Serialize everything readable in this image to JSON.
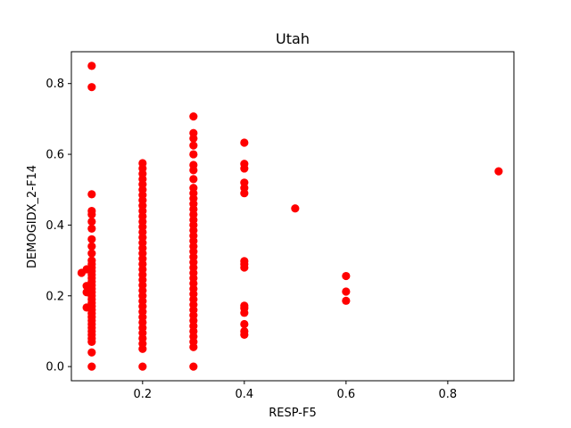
{
  "chart_data": {
    "type": "scatter",
    "title": "Utah",
    "xlabel": "RESP-F5",
    "ylabel": "DEMOGIDX_2-F14",
    "xlim": [
      0.06,
      0.93
    ],
    "ylim": [
      -0.04,
      0.89
    ],
    "xticks": [
      0.2,
      0.4,
      0.6,
      0.8
    ],
    "yticks": [
      0.0,
      0.2,
      0.4,
      0.6,
      0.8
    ],
    "xtick_labels": [
      "0.2",
      "0.4",
      "0.6",
      "0.8"
    ],
    "ytick_labels": [
      "0.0",
      "0.2",
      "0.4",
      "0.6",
      "0.8"
    ],
    "grid": false,
    "marker_color": "#ff0000",
    "series": [
      {
        "name": "Utah",
        "points": [
          [
            0.1,
            0.85
          ],
          [
            0.1,
            0.79
          ],
          [
            0.1,
            0.487
          ],
          [
            0.1,
            0.44
          ],
          [
            0.1,
            0.43
          ],
          [
            0.1,
            0.41
          ],
          [
            0.1,
            0.39
          ],
          [
            0.1,
            0.36
          ],
          [
            0.1,
            0.34
          ],
          [
            0.1,
            0.32
          ],
          [
            0.1,
            0.3
          ],
          [
            0.1,
            0.29
          ],
          [
            0.1,
            0.28
          ],
          [
            0.1,
            0.27
          ],
          [
            0.1,
            0.26
          ],
          [
            0.1,
            0.25
          ],
          [
            0.1,
            0.24
          ],
          [
            0.1,
            0.23
          ],
          [
            0.1,
            0.22
          ],
          [
            0.1,
            0.21
          ],
          [
            0.1,
            0.2
          ],
          [
            0.1,
            0.19
          ],
          [
            0.1,
            0.18
          ],
          [
            0.1,
            0.17
          ],
          [
            0.1,
            0.16
          ],
          [
            0.1,
            0.15
          ],
          [
            0.1,
            0.14
          ],
          [
            0.1,
            0.13
          ],
          [
            0.1,
            0.12
          ],
          [
            0.1,
            0.11
          ],
          [
            0.1,
            0.1
          ],
          [
            0.1,
            0.09
          ],
          [
            0.1,
            0.08
          ],
          [
            0.1,
            0.07
          ],
          [
            0.1,
            0.04
          ],
          [
            0.1,
            0.0
          ],
          [
            0.08,
            0.265
          ],
          [
            0.09,
            0.275
          ],
          [
            0.09,
            0.228
          ],
          [
            0.09,
            0.21
          ],
          [
            0.09,
            0.167
          ],
          [
            0.095,
            0.225
          ],
          [
            0.2,
            0.575
          ],
          [
            0.2,
            0.56
          ],
          [
            0.2,
            0.545
          ],
          [
            0.2,
            0.53
          ],
          [
            0.2,
            0.515
          ],
          [
            0.2,
            0.5
          ],
          [
            0.2,
            0.485
          ],
          [
            0.2,
            0.47
          ],
          [
            0.2,
            0.455
          ],
          [
            0.2,
            0.44
          ],
          [
            0.2,
            0.425
          ],
          [
            0.2,
            0.41
          ],
          [
            0.2,
            0.395
          ],
          [
            0.2,
            0.38
          ],
          [
            0.2,
            0.365
          ],
          [
            0.2,
            0.35
          ],
          [
            0.2,
            0.335
          ],
          [
            0.2,
            0.32
          ],
          [
            0.2,
            0.305
          ],
          [
            0.2,
            0.29
          ],
          [
            0.2,
            0.275
          ],
          [
            0.2,
            0.26
          ],
          [
            0.2,
            0.245
          ],
          [
            0.2,
            0.23
          ],
          [
            0.2,
            0.215
          ],
          [
            0.2,
            0.2
          ],
          [
            0.2,
            0.185
          ],
          [
            0.2,
            0.17
          ],
          [
            0.2,
            0.155
          ],
          [
            0.2,
            0.14
          ],
          [
            0.2,
            0.125
          ],
          [
            0.2,
            0.11
          ],
          [
            0.2,
            0.095
          ],
          [
            0.2,
            0.08
          ],
          [
            0.2,
            0.065
          ],
          [
            0.2,
            0.05
          ],
          [
            0.2,
            0.0
          ],
          [
            0.3,
            0.707
          ],
          [
            0.3,
            0.66
          ],
          [
            0.3,
            0.645
          ],
          [
            0.3,
            0.625
          ],
          [
            0.3,
            0.6
          ],
          [
            0.3,
            0.57
          ],
          [
            0.3,
            0.555
          ],
          [
            0.3,
            0.53
          ],
          [
            0.3,
            0.505
          ],
          [
            0.3,
            0.49
          ],
          [
            0.3,
            0.475
          ],
          [
            0.3,
            0.46
          ],
          [
            0.3,
            0.445
          ],
          [
            0.3,
            0.43
          ],
          [
            0.3,
            0.415
          ],
          [
            0.3,
            0.4
          ],
          [
            0.3,
            0.385
          ],
          [
            0.3,
            0.37
          ],
          [
            0.3,
            0.355
          ],
          [
            0.3,
            0.34
          ],
          [
            0.3,
            0.325
          ],
          [
            0.3,
            0.31
          ],
          [
            0.3,
            0.295
          ],
          [
            0.3,
            0.28
          ],
          [
            0.3,
            0.265
          ],
          [
            0.3,
            0.25
          ],
          [
            0.3,
            0.235
          ],
          [
            0.3,
            0.22
          ],
          [
            0.3,
            0.205
          ],
          [
            0.3,
            0.19
          ],
          [
            0.3,
            0.175
          ],
          [
            0.3,
            0.16
          ],
          [
            0.3,
            0.145
          ],
          [
            0.3,
            0.13
          ],
          [
            0.3,
            0.115
          ],
          [
            0.3,
            0.1
          ],
          [
            0.3,
            0.085
          ],
          [
            0.3,
            0.07
          ],
          [
            0.3,
            0.055
          ],
          [
            0.3,
            0.0
          ],
          [
            0.4,
            0.633
          ],
          [
            0.4,
            0.573
          ],
          [
            0.4,
            0.56
          ],
          [
            0.4,
            0.52
          ],
          [
            0.4,
            0.505
          ],
          [
            0.4,
            0.49
          ],
          [
            0.4,
            0.298
          ],
          [
            0.4,
            0.29
          ],
          [
            0.4,
            0.28
          ],
          [
            0.4,
            0.172
          ],
          [
            0.4,
            0.165
          ],
          [
            0.4,
            0.152
          ],
          [
            0.4,
            0.12
          ],
          [
            0.4,
            0.1
          ],
          [
            0.4,
            0.09
          ],
          [
            0.5,
            0.447
          ],
          [
            0.6,
            0.256
          ],
          [
            0.6,
            0.212
          ],
          [
            0.6,
            0.186
          ],
          [
            0.9,
            0.552
          ]
        ]
      }
    ]
  }
}
